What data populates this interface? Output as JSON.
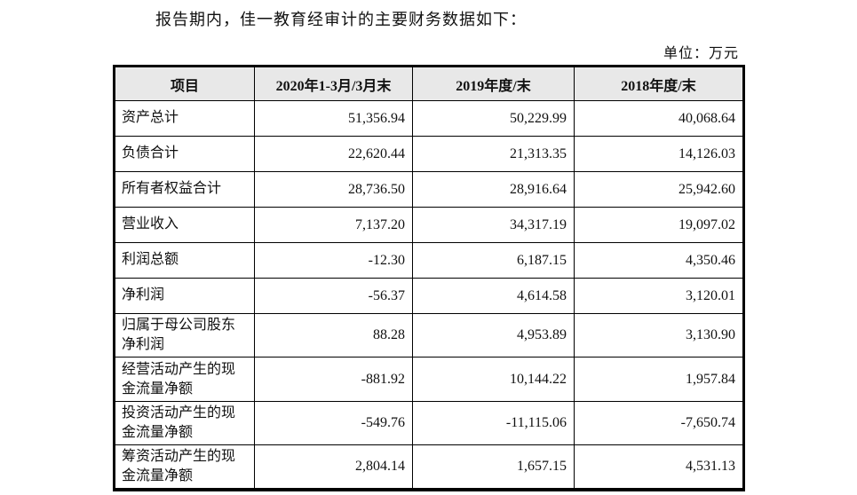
{
  "page": {
    "intro_text": "报告期内，佳一教育经审计的主要财务数据如下：",
    "unit_label": "单位：万元"
  },
  "colors": {
    "header_bg": "#e8e8e8",
    "border": "#000000",
    "text": "#111111"
  },
  "table": {
    "headers": [
      "项目",
      "2020年1-3月/3月末",
      "2019年度/末",
      "2018年度/末"
    ],
    "rows": [
      {
        "label": "资产总计",
        "v2020": "51,356.94",
        "v2019": "50,229.99",
        "v2018": "40,068.64"
      },
      {
        "label": "负债合计",
        "v2020": "22,620.44",
        "v2019": "21,313.35",
        "v2018": "14,126.03"
      },
      {
        "label": "所有者权益合计",
        "v2020": "28,736.50",
        "v2019": "28,916.64",
        "v2018": "25,942.60"
      },
      {
        "label": "营业收入",
        "v2020": "7,137.20",
        "v2019": "34,317.19",
        "v2018": "19,097.02"
      },
      {
        "label": "利润总额",
        "v2020": "-12.30",
        "v2019": "6,187.15",
        "v2018": "4,350.46"
      },
      {
        "label": "净利润",
        "v2020": "-56.37",
        "v2019": "4,614.58",
        "v2018": "3,120.01"
      },
      {
        "label": "归属于母公司股东净利润",
        "v2020": "88.28",
        "v2019": "4,953.89",
        "v2018": "3,130.90"
      },
      {
        "label": "经营活动产生的现金流量净额",
        "v2020": "-881.92",
        "v2019": "10,144.22",
        "v2018": "1,957.84"
      },
      {
        "label": "投资活动产生的现金流量净额",
        "v2020": "-549.76",
        "v2019": "-11,115.06",
        "v2018": "-7,650.74"
      },
      {
        "label": "筹资活动产生的现金流量净额",
        "v2020": "2,804.14",
        "v2019": "1,657.15",
        "v2018": "4,531.13"
      }
    ]
  }
}
